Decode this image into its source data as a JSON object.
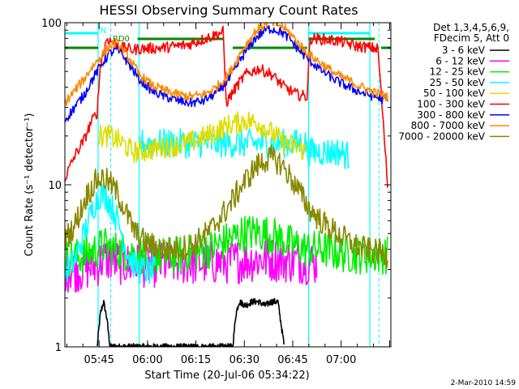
{
  "chart_data": {
    "type": "line",
    "title": "HESSI Observing Summary Count Rates",
    "xlabel": "Start Time (20-Jul-06 05:34:22)",
    "ylabel": "Count Rate (s⁻¹ detector⁻¹)",
    "yscale": "log",
    "ylim": [
      1,
      100
    ],
    "xlim_min": [
      0,
      101
    ],
    "x_unit": "minutes after 05:34:22",
    "x_tick_labels": [
      "05:45",
      "06:00",
      "06:15",
      "06:30",
      "06:45",
      "07:00"
    ],
    "y_tick_labels": [
      "1",
      "10",
      "100"
    ],
    "legend_header": [
      "Det 1,3,4,5,6,9,",
      "FDecim 5, Att 0"
    ],
    "legend_placement": "right",
    "flag_labels": {
      "n": "N",
      "rd": "RD0"
    },
    "footer_date": "2-Mar-2010 14:59",
    "series": [
      {
        "name": "3 - 6 keV",
        "color": "#000000",
        "points": [
          [
            10,
            1.0
          ],
          [
            11,
            1.6
          ],
          [
            12,
            1.9
          ],
          [
            13,
            1.5
          ],
          [
            14,
            1.0
          ],
          [
            52,
            1.0
          ],
          [
            53,
            1.6
          ],
          [
            54,
            1.9
          ],
          [
            56,
            1.8
          ],
          [
            58,
            1.9
          ],
          [
            60,
            1.9
          ],
          [
            62,
            1.8
          ],
          [
            64,
            1.9
          ],
          [
            66,
            1.9
          ],
          [
            68,
            1.0
          ]
        ]
      },
      {
        "name": "6 - 12 keV",
        "color": "#ff00ff",
        "points": [
          [
            0,
            3.0
          ],
          [
            5,
            3.0
          ],
          [
            10,
            3.2
          ],
          [
            12,
            3.5
          ],
          [
            15,
            3.4
          ],
          [
            20,
            3.2
          ],
          [
            28,
            3.2
          ],
          [
            35,
            3.3
          ],
          [
            45,
            3.3
          ],
          [
            55,
            3.4
          ],
          [
            62,
            3.5
          ],
          [
            70,
            3.4
          ],
          [
            78,
            3.3
          ]
        ]
      },
      {
        "name": "12 - 25 keV",
        "color": "#00ee00",
        "points": [
          [
            0,
            3.5
          ],
          [
            5,
            3.6
          ],
          [
            10,
            4.0
          ],
          [
            12,
            4.2
          ],
          [
            15,
            4.0
          ],
          [
            20,
            3.8
          ],
          [
            28,
            3.6
          ],
          [
            35,
            3.7
          ],
          [
            40,
            3.8
          ],
          [
            45,
            4.0
          ],
          [
            50,
            4.5
          ],
          [
            55,
            5.0
          ],
          [
            60,
            5.1
          ],
          [
            65,
            4.8
          ],
          [
            70,
            4.3
          ],
          [
            75,
            4.0
          ],
          [
            80,
            4.0
          ],
          [
            85,
            3.8
          ],
          [
            90,
            3.7
          ],
          [
            95,
            3.7
          ],
          [
            100,
            3.7
          ]
        ]
      },
      {
        "name": "25 - 50 keV",
        "color": "#00ffff",
        "points": [
          [
            0,
            2.9
          ],
          [
            3,
            3.4
          ],
          [
            6,
            5.0
          ],
          [
            9,
            7.5
          ],
          [
            11,
            8.8
          ],
          [
            13,
            8.4
          ],
          [
            15,
            7.0
          ],
          [
            17,
            5.5
          ],
          [
            19,
            4.0
          ],
          [
            21,
            3.3
          ],
          [
            23,
            3.0
          ],
          [
            28,
            2.9
          ]
        ]
      },
      {
        "name": "25 - 50 keV",
        "color": "#00ffff",
        "points": [
          [
            23,
            18
          ],
          [
            30,
            18
          ],
          [
            38,
            18
          ],
          [
            46,
            18
          ],
          [
            53,
            18
          ],
          [
            60,
            18
          ],
          [
            67,
            18
          ],
          [
            74,
            18
          ],
          [
            75,
            18
          ]
        ]
      },
      {
        "name": "25 - 50 keV",
        "color": "#00ffff",
        "points": [
          [
            75,
            16
          ],
          [
            80,
            16
          ],
          [
            85,
            16
          ],
          [
            88,
            15
          ]
        ]
      },
      {
        "name": "50 - 100 keV",
        "color": "#dddd00",
        "points": [
          [
            10,
            20
          ],
          [
            14,
            20
          ],
          [
            18,
            18
          ],
          [
            21,
            16
          ],
          [
            23,
            16
          ],
          [
            30,
            17
          ],
          [
            38,
            18
          ],
          [
            44,
            20
          ],
          [
            50,
            23
          ],
          [
            56,
            25
          ],
          [
            60,
            24
          ],
          [
            64,
            21
          ],
          [
            68,
            18
          ],
          [
            72,
            17
          ],
          [
            75,
            16
          ]
        ]
      },
      {
        "name": "100 - 300 keV",
        "color": "#ff0000",
        "points": [
          [
            0,
            11
          ],
          [
            3,
            15
          ],
          [
            6,
            19
          ],
          [
            8,
            24
          ],
          [
            10,
            28
          ],
          [
            11,
            55
          ],
          [
            13,
            80
          ],
          [
            15,
            75
          ],
          [
            18,
            70
          ],
          [
            21,
            68
          ],
          [
            23,
            69
          ],
          [
            30,
            70
          ],
          [
            38,
            73
          ],
          [
            46,
            83
          ],
          [
            49,
            88
          ],
          [
            50,
            32
          ],
          [
            53,
            40
          ],
          [
            56,
            48
          ],
          [
            60,
            52
          ],
          [
            64,
            48
          ],
          [
            68,
            40
          ],
          [
            72,
            36
          ],
          [
            75,
            35
          ],
          [
            76,
            80
          ],
          [
            80,
            79
          ],
          [
            85,
            77
          ],
          [
            88,
            74
          ],
          [
            90,
            72
          ],
          [
            95,
            70
          ],
          [
            97,
            69
          ],
          [
            100,
            10
          ]
        ]
      },
      {
        "name": "300 - 800 keV",
        "color": "#0000ff",
        "points": [
          [
            0,
            25
          ],
          [
            3,
            30
          ],
          [
            6,
            36
          ],
          [
            8,
            43
          ],
          [
            10,
            50
          ],
          [
            12,
            58
          ],
          [
            14,
            65
          ],
          [
            16,
            68
          ],
          [
            18,
            63
          ],
          [
            20,
            55
          ],
          [
            23,
            45
          ],
          [
            27,
            38
          ],
          [
            31,
            35
          ],
          [
            35,
            33
          ],
          [
            39,
            32
          ],
          [
            43,
            33
          ],
          [
            47,
            37
          ],
          [
            51,
            45
          ],
          [
            55,
            62
          ],
          [
            59,
            80
          ],
          [
            62,
            90
          ],
          [
            64,
            92
          ],
          [
            67,
            88
          ],
          [
            70,
            78
          ],
          [
            73,
            66
          ],
          [
            76,
            58
          ],
          [
            80,
            50
          ],
          [
            84,
            44
          ],
          [
            88,
            40
          ],
          [
            92,
            37
          ],
          [
            96,
            35
          ],
          [
            100,
            33
          ]
        ]
      },
      {
        "name": "800 - 7000 keV",
        "color": "#ff8800",
        "points": [
          [
            0,
            32
          ],
          [
            3,
            38
          ],
          [
            6,
            45
          ],
          [
            8,
            52
          ],
          [
            10,
            58
          ],
          [
            12,
            65
          ],
          [
            14,
            72
          ],
          [
            16,
            75
          ],
          [
            18,
            68
          ],
          [
            20,
            60
          ],
          [
            23,
            48
          ],
          [
            27,
            41
          ],
          [
            31,
            38
          ],
          [
            35,
            36
          ],
          [
            39,
            35
          ],
          [
            43,
            36
          ],
          [
            47,
            40
          ],
          [
            51,
            49
          ],
          [
            55,
            68
          ],
          [
            59,
            88
          ],
          [
            62,
            98
          ],
          [
            64,
            100
          ],
          [
            67,
            96
          ],
          [
            70,
            85
          ],
          [
            73,
            72
          ],
          [
            76,
            63
          ],
          [
            80,
            55
          ],
          [
            84,
            48
          ],
          [
            88,
            44
          ],
          [
            92,
            40
          ],
          [
            96,
            37
          ],
          [
            100,
            35
          ]
        ]
      },
      {
        "name": "7000 - 20000 keV",
        "color": "#888800",
        "points": [
          [
            0,
            4.6
          ],
          [
            3,
            5.6
          ],
          [
            5,
            7.0
          ],
          [
            7,
            8.8
          ],
          [
            9,
            10.0
          ],
          [
            10,
            10.8
          ],
          [
            12,
            11.0
          ],
          [
            14,
            10.2
          ],
          [
            16,
            9.0
          ],
          [
            18,
            7.5
          ],
          [
            20,
            6.0
          ],
          [
            22,
            5.0
          ],
          [
            25,
            4.4
          ],
          [
            30,
            4.0
          ],
          [
            35,
            4.0
          ],
          [
            40,
            4.3
          ],
          [
            45,
            5.2
          ],
          [
            50,
            7.0
          ],
          [
            55,
            10.0
          ],
          [
            59,
            12.8
          ],
          [
            62,
            14.2
          ],
          [
            64,
            14.6
          ],
          [
            67,
            13.5
          ],
          [
            70,
            11.0
          ],
          [
            73,
            8.8
          ],
          [
            76,
            7.0
          ],
          [
            80,
            5.8
          ],
          [
            85,
            4.9
          ],
          [
            90,
            4.2
          ],
          [
            95,
            3.9
          ],
          [
            100,
            3.7
          ]
        ]
      }
    ]
  }
}
